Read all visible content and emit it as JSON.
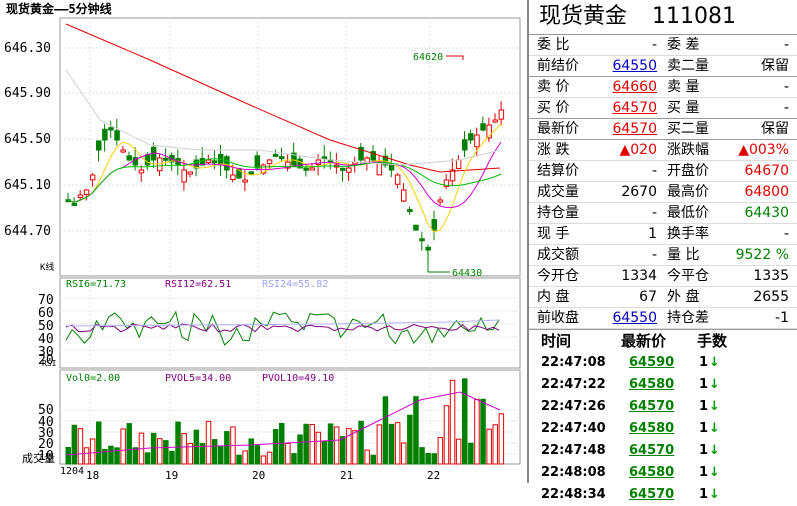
{
  "chart": {
    "title": "现货黄金——5分钟线",
    "kline_label": "K线",
    "price_ticks": [
      "646.30",
      "645.90",
      "645.50",
      "645.10",
      "644.70"
    ],
    "high_marker": "64620",
    "low_marker": "64430",
    "rsi": {
      "rsi6": "RSI6=71.73",
      "rsi12": "RSI12=62.51",
      "rsi24": "RSI24=55.82",
      "ticks": [
        "70",
        "60",
        "50",
        "40",
        "30",
        "20"
      ],
      "label": "RSI"
    },
    "vol": {
      "vol0": "Vol0=2.00",
      "pvol5": "PVOL5=34.00",
      "pvol10": "PVOL10=49.10",
      "ticks": [
        "50",
        "40",
        "30",
        "20",
        "10"
      ],
      "label": "成交量"
    },
    "xaxis": [
      "1204",
      "18",
      "19",
      "20",
      "21",
      "22"
    ],
    "colors": {
      "up": "#e00000",
      "down": "#008000",
      "ma1": "#e00000",
      "ma2": "#ffd000",
      "ma3": "#d000d0",
      "ma4": "#00c000",
      "ma5": "#d0d0d0"
    }
  },
  "panel": {
    "name": "现货黄金",
    "code": "111081",
    "rows": [
      {
        "l1": "委  比",
        "v1": "-",
        "c1": "black",
        "l2": "委  差",
        "v2": "-",
        "c2": "black"
      },
      {
        "l1": "前结价",
        "v1": "64550",
        "c1": "blue",
        "l2": "卖二量",
        "v2": "保留",
        "c2": "black"
      },
      {
        "l1": "卖  价",
        "v1": "64660",
        "c1": "red",
        "l2": "卖  量",
        "v2": "-",
        "c2": "black"
      },
      {
        "l1": "买  价",
        "v1": "64570",
        "c1": "red",
        "l2": "买  量",
        "v2": "-",
        "c2": "black"
      },
      {
        "l1": "最新价",
        "v1": "64570",
        "c1": "red",
        "l2": "买二量",
        "v2": "保留",
        "c2": "black"
      },
      {
        "l1": "涨  跌",
        "v1": "▲020",
        "c1": "red",
        "l2": "涨跌幅",
        "v2": "▲003%",
        "c2": "red"
      },
      {
        "l1": "结算价",
        "v1": "-",
        "c1": "black",
        "l2": "开盘价",
        "v2": "64670",
        "c2": "red"
      },
      {
        "l1": "成交量",
        "v1": "2670",
        "c1": "black",
        "l2": "最高价",
        "v2": "64800",
        "c2": "red"
      },
      {
        "l1": "持仓量",
        "v1": "-",
        "c1": "black",
        "l2": "最低价",
        "v2": "64430",
        "c2": "green"
      },
      {
        "l1": "现  手",
        "v1": "1",
        "c1": "black",
        "l2": "换手率",
        "v2": "-",
        "c2": "black"
      },
      {
        "l1": "成交额",
        "v1": "-",
        "c1": "black",
        "l2": "量  比",
        "v2": "9522 %",
        "c2": "green"
      },
      {
        "l1": "今开仓",
        "v1": "1334",
        "c1": "black",
        "l2": "今平仓",
        "v2": "1335",
        "c2": "black"
      },
      {
        "l1": "内  盘",
        "v1": "67",
        "c1": "black",
        "l2": "外  盘",
        "v2": "2655",
        "c2": "black"
      },
      {
        "l1": "前收盘",
        "v1": "64550",
        "c1": "blue",
        "l2": "持仓差",
        "v2": "-1",
        "c2": "black"
      }
    ],
    "tick_headers": {
      "time": "时间",
      "price": "最新价",
      "vol": "手数"
    },
    "ticks": [
      {
        "time": "22:47:08",
        "price": "64590",
        "vol": "1"
      },
      {
        "time": "22:47:22",
        "price": "64580",
        "vol": "1"
      },
      {
        "time": "22:47:26",
        "price": "64570",
        "vol": "1"
      },
      {
        "time": "22:47:40",
        "price": "64580",
        "vol": "1"
      },
      {
        "time": "22:47:48",
        "price": "64570",
        "vol": "1"
      },
      {
        "time": "22:48:08",
        "price": "64580",
        "vol": "1"
      },
      {
        "time": "22:48:34",
        "price": "64570",
        "vol": "1"
      }
    ]
  }
}
